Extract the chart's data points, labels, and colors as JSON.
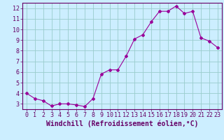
{
  "x": [
    0,
    1,
    2,
    3,
    4,
    5,
    6,
    7,
    8,
    9,
    10,
    11,
    12,
    13,
    14,
    15,
    16,
    17,
    18,
    19,
    20,
    21,
    22,
    23
  ],
  "y": [
    4.0,
    3.5,
    3.3,
    2.8,
    3.0,
    3.0,
    2.9,
    2.75,
    3.5,
    5.8,
    6.2,
    6.2,
    7.5,
    9.1,
    9.5,
    10.7,
    11.7,
    11.7,
    12.2,
    11.5,
    11.7,
    9.2,
    8.9,
    8.3
  ],
  "line_color": "#990099",
  "marker": "D",
  "marker_size": 2,
  "background_color": "#cceeff",
  "grid_color": "#99cccc",
  "xlabel": "Windchill (Refroidissement éolien,°C)",
  "xlim": [
    -0.5,
    23.5
  ],
  "ylim": [
    2.5,
    12.5
  ],
  "xtick_labels": [
    "0",
    "1",
    "2",
    "3",
    "4",
    "5",
    "6",
    "7",
    "8",
    "9",
    "10",
    "11",
    "12",
    "13",
    "14",
    "15",
    "16",
    "17",
    "18",
    "19",
    "20",
    "21",
    "22",
    "23"
  ],
  "ytick_values": [
    3,
    4,
    5,
    6,
    7,
    8,
    9,
    10,
    11,
    12
  ],
  "tick_color": "#660066",
  "label_color": "#660066",
  "axis_color": "#660066",
  "font_size": 6,
  "xlabel_font_size": 7
}
